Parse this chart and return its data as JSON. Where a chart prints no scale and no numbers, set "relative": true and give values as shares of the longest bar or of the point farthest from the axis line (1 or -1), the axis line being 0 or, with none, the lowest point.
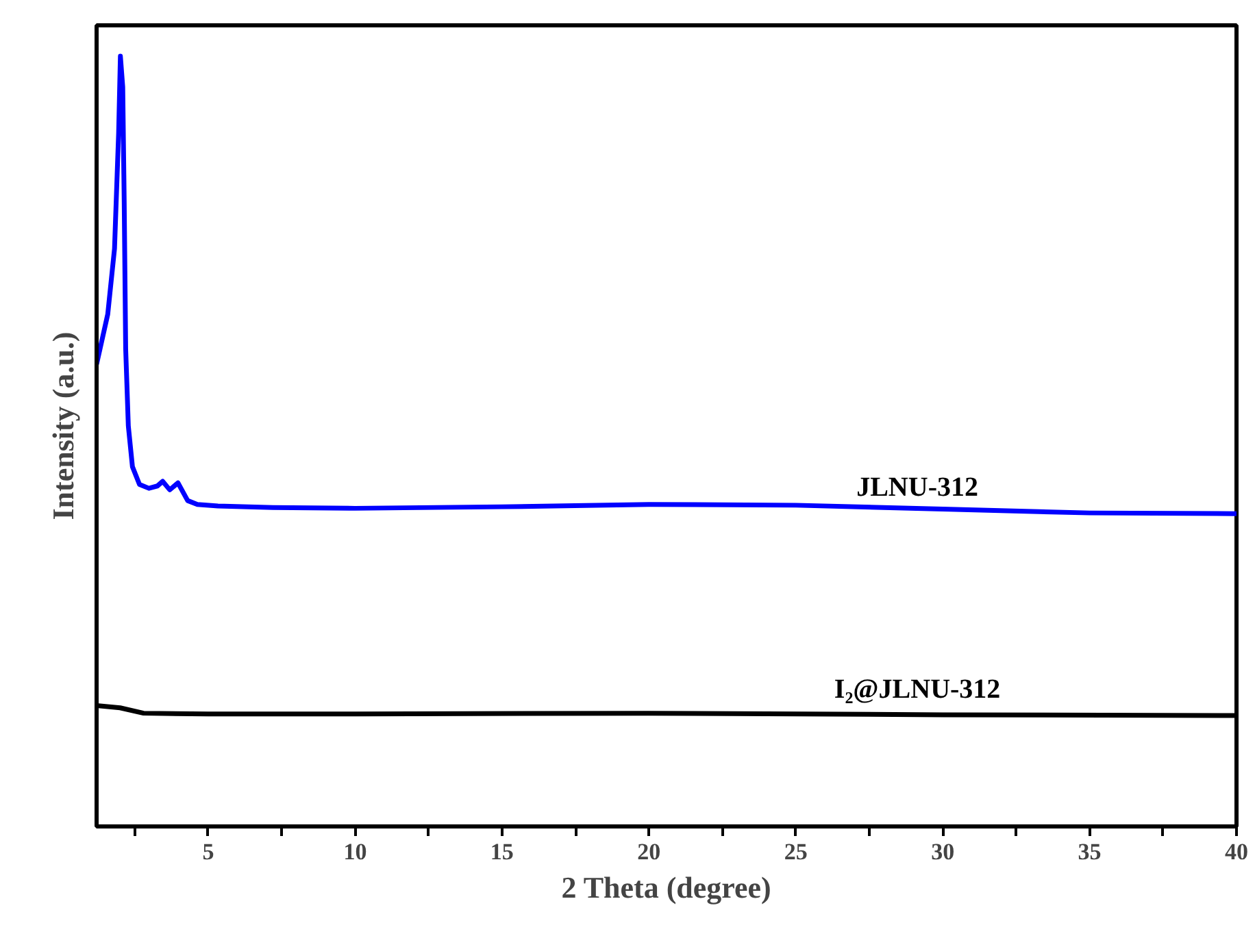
{
  "chart_data": {
    "type": "line",
    "relative": true,
    "xlabel": "2 Theta (degree)",
    "ylabel": "Intensity (a.u.)",
    "xlim": [
      1.2,
      40
    ],
    "xticks": [
      {
        "value": 2.5,
        "label": null
      },
      5,
      {
        "value": 7.5,
        "label": null
      },
      10,
      {
        "value": 12.5,
        "label": null
      },
      15,
      {
        "value": 17.5,
        "label": null
      },
      20,
      {
        "value": 22.5,
        "label": null
      },
      25,
      {
        "value": 27.5,
        "label": null
      },
      30,
      {
        "value": 32.5,
        "label": null
      },
      35,
      {
        "value": 37.5,
        "label": null
      },
      40
    ],
    "tick_labels": "x",
    "grid": false,
    "legend": false,
    "marker": "none",
    "line_style": "solid",
    "series": [
      {
        "name": "JLNU-312",
        "color": "#0000ff",
        "x": [
          1.2,
          1.58,
          1.81,
          1.95,
          2.01,
          2.09,
          2.14,
          2.19,
          2.28,
          2.42,
          2.66,
          2.98,
          3.27,
          3.45,
          3.69,
          3.97,
          4.3,
          4.63,
          5.33,
          7.2,
          10,
          15,
          20,
          25,
          30,
          35,
          40
        ],
        "values": [
          0.6,
          0.665,
          0.75,
          0.9,
          1.0,
          0.96,
          0.81,
          0.62,
          0.52,
          0.467,
          0.444,
          0.439,
          0.442,
          0.448,
          0.437,
          0.446,
          0.423,
          0.418,
          0.416,
          0.414,
          0.413,
          0.415,
          0.418,
          0.417,
          0.412,
          0.407,
          0.406
        ]
      },
      {
        "name": "I₂@JLNU-312",
        "color": "#000000",
        "x": [
          1.2,
          2,
          2.8,
          5,
          10,
          20,
          30,
          40
        ],
        "values": [
          0.157,
          0.154,
          0.147,
          0.146,
          0.146,
          0.147,
          0.145,
          0.144
        ]
      }
    ]
  }
}
